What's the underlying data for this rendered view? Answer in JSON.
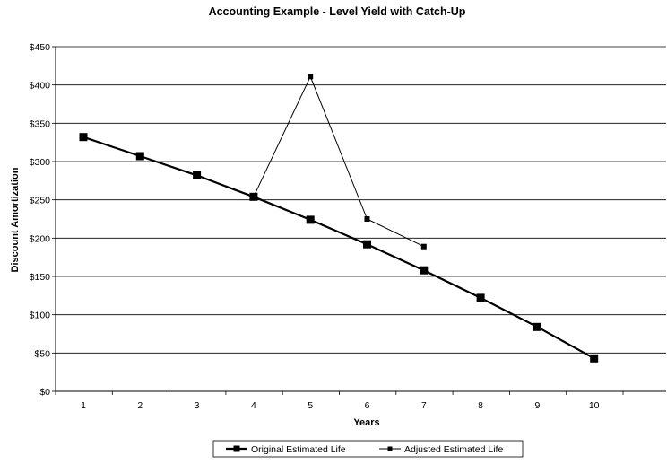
{
  "chart_data": {
    "type": "line",
    "title": "Accounting Example - Level Yield with Catch-Up",
    "xlabel": "Years",
    "ylabel": "Discount Amortization",
    "categories": [
      "1",
      "2",
      "3",
      "4",
      "5",
      "6",
      "7",
      "8",
      "9",
      "10"
    ],
    "yticks": [
      "$0",
      "$50",
      "$100",
      "$150",
      "$200",
      "$250",
      "$300",
      "$350",
      "$400",
      "$450"
    ],
    "ylim": [
      0,
      450
    ],
    "grid": true,
    "legend_position": "bottom",
    "series": [
      {
        "name": "Original Estimated Life",
        "x": [
          1,
          2,
          3,
          4,
          5,
          6,
          7,
          8,
          9,
          10
        ],
        "values": [
          332,
          307,
          282,
          254,
          224,
          192,
          158,
          122,
          84,
          43
        ],
        "color": "#000000",
        "style": "thick"
      },
      {
        "name": "Adjusted Estimated Life",
        "x": [
          4,
          5,
          6,
          7
        ],
        "values": [
          254,
          411,
          225,
          189
        ],
        "color": "#000000",
        "style": "thin"
      }
    ]
  }
}
